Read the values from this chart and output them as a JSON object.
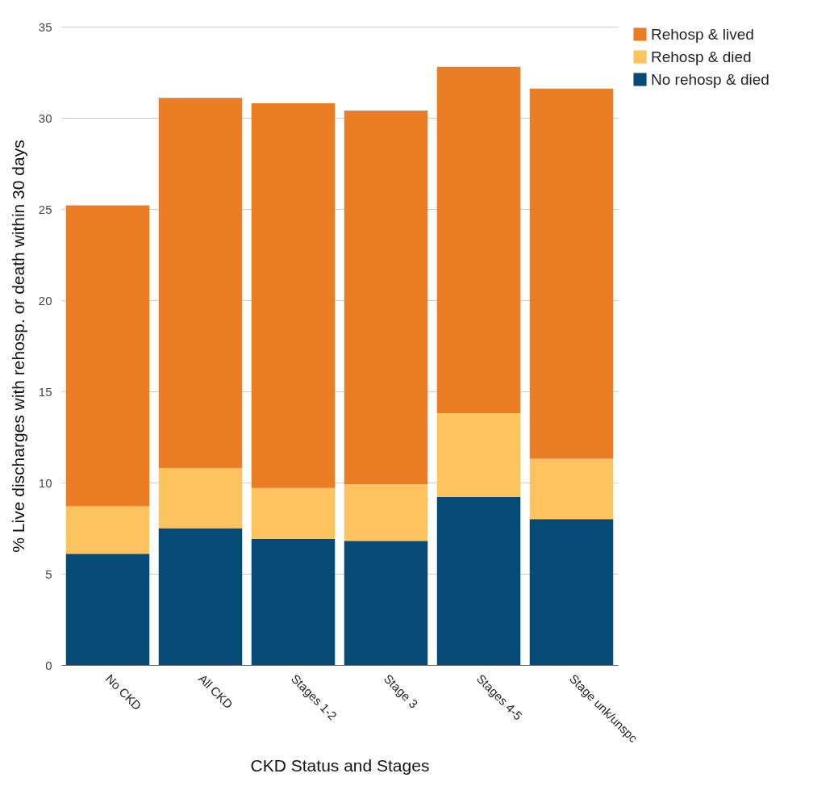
{
  "chart_data": {
    "type": "bar",
    "stacked": true,
    "xlabel": "CKD Status and Stages",
    "ylabel": "% Live discharges with rehosp. or death within 30 days",
    "categories": [
      "No CKD",
      "All CKD",
      "Stages 1-2",
      "Stage 3",
      "Stages 4-5",
      "Stage unk/unspc"
    ],
    "series": [
      {
        "name": "No rehosp & died",
        "color": "#064a76",
        "values": [
          6.1,
          7.5,
          6.9,
          6.8,
          9.2,
          8.0
        ]
      },
      {
        "name": "Rehosp & died",
        "color": "#fdc35f",
        "values": [
          2.6,
          3.3,
          2.8,
          3.1,
          4.6,
          3.3
        ]
      },
      {
        "name": "Rehosp & lived",
        "color": "#eb7d24",
        "values": [
          16.5,
          20.3,
          21.1,
          20.5,
          19.0,
          20.3
        ]
      }
    ],
    "ylim": [
      0,
      35
    ],
    "yticks": [
      0,
      5,
      10,
      15,
      20,
      25,
      30,
      35
    ],
    "grid": "y",
    "legend": "right"
  }
}
